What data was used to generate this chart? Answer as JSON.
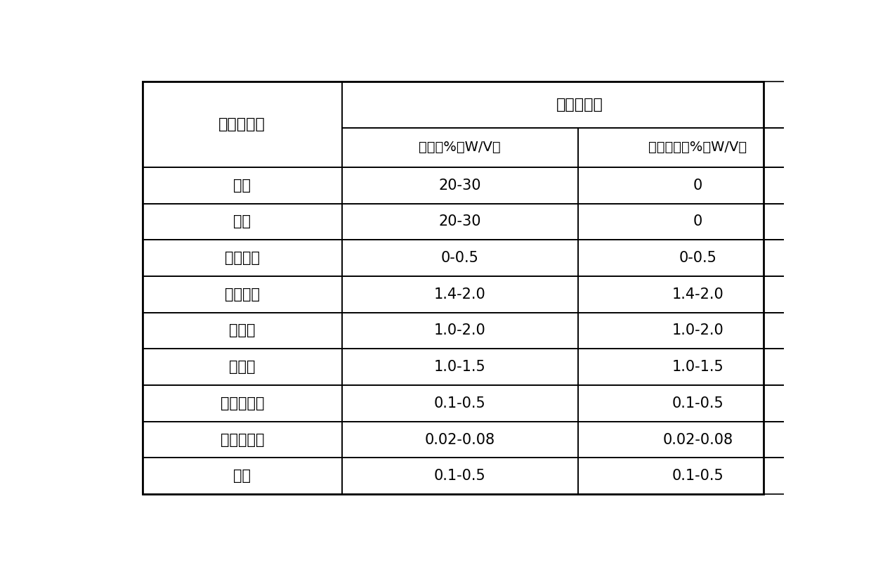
{
  "col_header_top": "补料培养基",
  "col_header_left": "原材料种类",
  "col_header_mid": "原配方%（W/V）",
  "col_header_right": "本发明配方%（W/V）",
  "rows": [
    {
      "label": "淀粉",
      "bold": true,
      "col1": "20-30",
      "col2": "0"
    },
    {
      "label": "米粉",
      "bold": true,
      "col1": "20-30",
      "col2": "0"
    },
    {
      "label": "黄豆饼粉",
      "bold": false,
      "col1": "0-0.5",
      "col2": "0-0.5"
    },
    {
      "label": "花生饼粉",
      "bold": false,
      "col1": "1.4-2.0",
      "col2": "1.4-2.0"
    },
    {
      "label": "酵母粉",
      "bold": false,
      "col1": "1.0-2.0",
      "col2": "1.0-2.0"
    },
    {
      "label": "碳酸钙",
      "bold": false,
      "col1": "1.0-1.5",
      "col2": "1.0-1.5"
    },
    {
      "label": "磷酸二氢钾",
      "bold": false,
      "col1": "0.1-0.5",
      "col2": "0.1-0.5"
    },
    {
      "label": "磷酸氢二钠",
      "bold": false,
      "col1": "0.02-0.08",
      "col2": "0.02-0.08"
    },
    {
      "label": "硅油",
      "bold": false,
      "col1": "0.1-0.5",
      "col2": "0.1-0.5"
    }
  ],
  "bg_color": "#ffffff",
  "line_color": "#000000",
  "font_size_header": 16,
  "font_size_subheader": 14,
  "font_size_cell": 15,
  "fig_width": 12.4,
  "fig_height": 8.11
}
